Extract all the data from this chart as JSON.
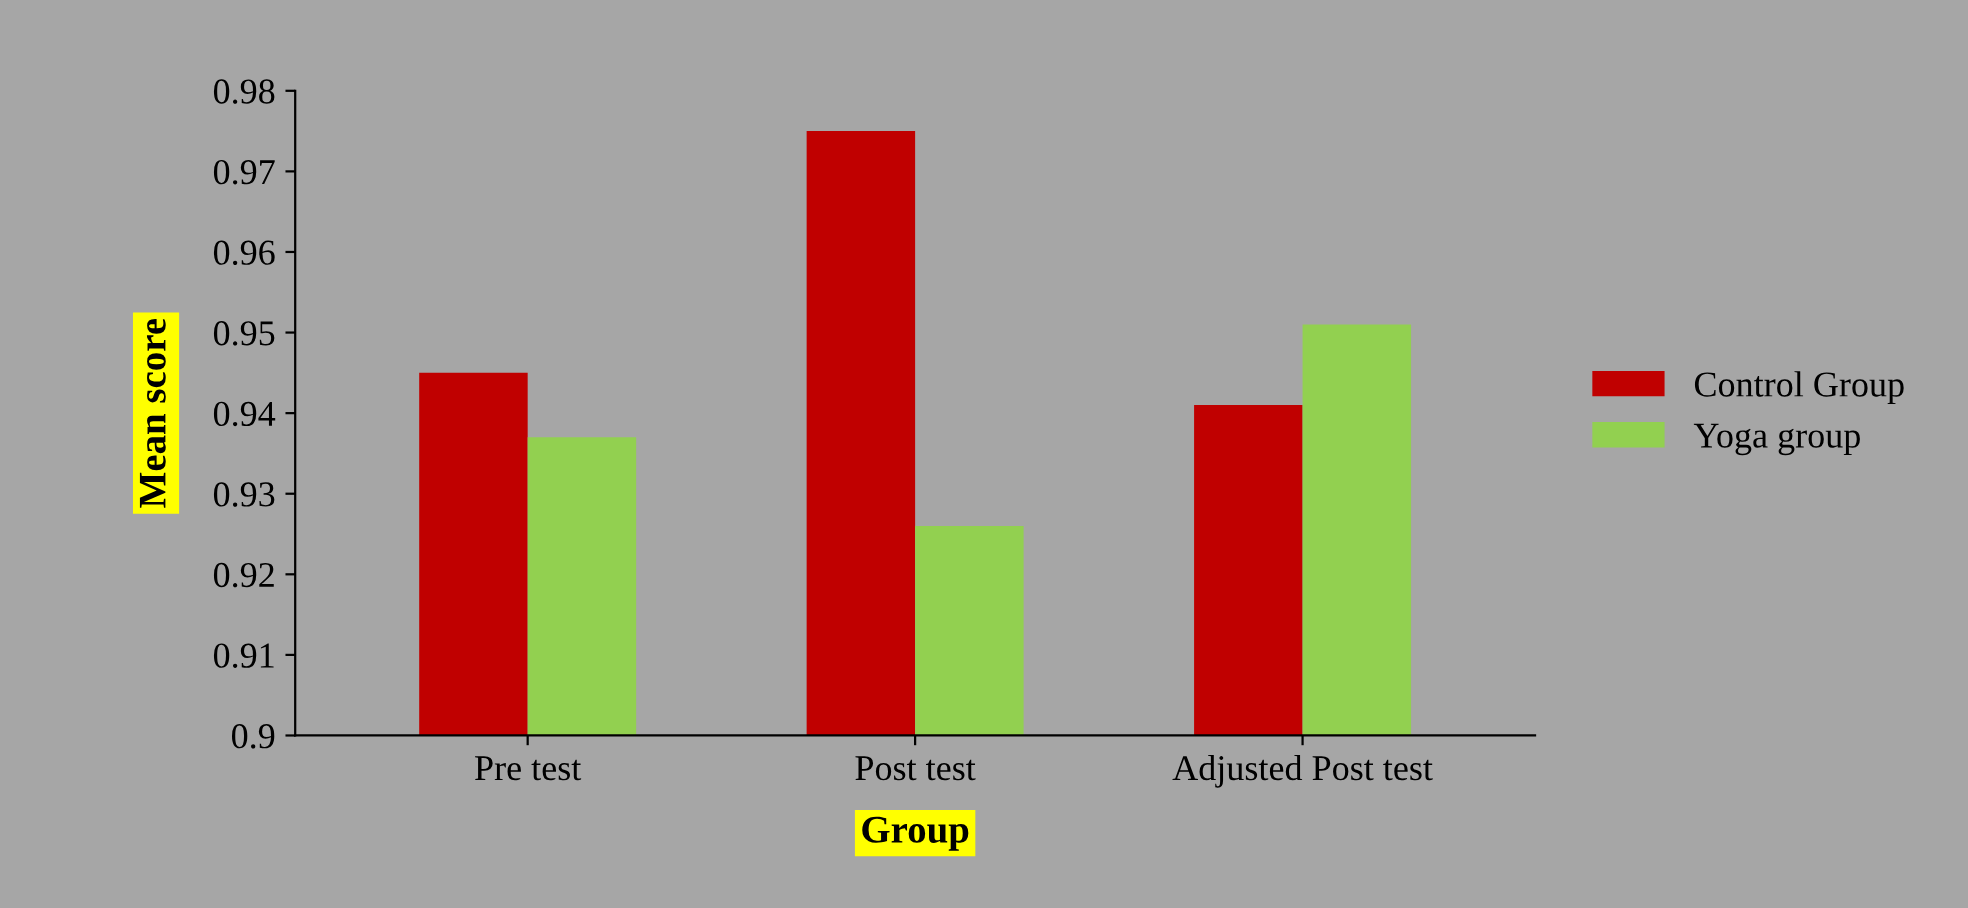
{
  "chart_data": {
    "type": "bar",
    "xlabel": "Group",
    "ylabel": "Mean score",
    "categories": [
      "Pre test",
      "Post test",
      "Adjusted Post test"
    ],
    "series": [
      {
        "name": "Control Group",
        "color": "#c00000",
        "values": [
          0.945,
          0.975,
          0.941
        ]
      },
      {
        "name": "Yoga group",
        "color": "#92d050",
        "values": [
          0.937,
          0.926,
          0.951
        ]
      }
    ],
    "ylim": [
      0.9,
      0.98
    ],
    "yticks": [
      0.9,
      0.91,
      0.92,
      0.93,
      0.94,
      0.95,
      0.96,
      0.97,
      0.98
    ],
    "grid": false,
    "legend": "right"
  }
}
